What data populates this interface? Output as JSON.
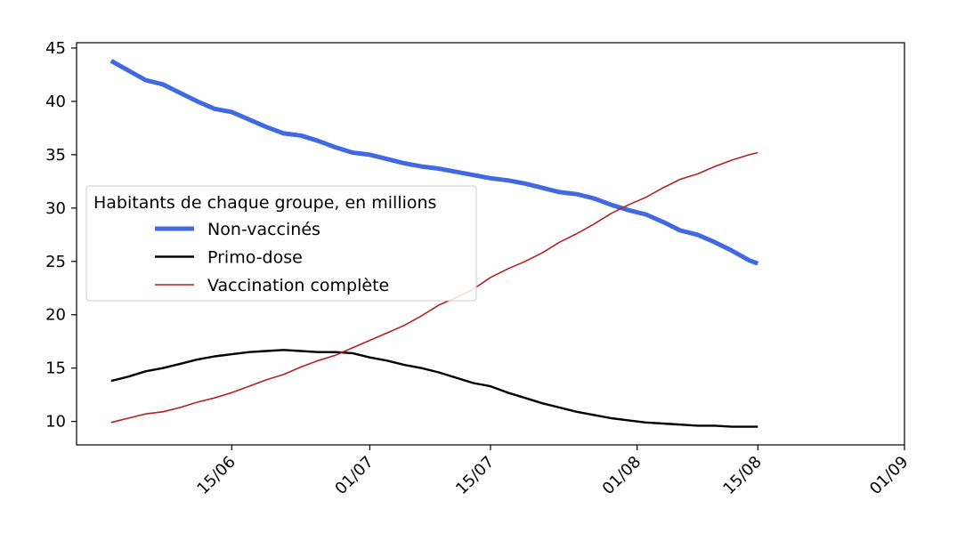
{
  "chart_data": {
    "type": "line",
    "title": "",
    "xlabel": "",
    "ylabel": "",
    "x_ticks": [
      "15/06",
      "01/07",
      "15/07",
      "01/08",
      "15/08",
      "01/09"
    ],
    "x_tick_dates": [
      "2021-06-15",
      "2021-07-01",
      "2021-07-15",
      "2021-08-01",
      "2021-08-15",
      "2021-09-01"
    ],
    "xlim": [
      "2021-05-28",
      "2021-09-01"
    ],
    "y_ticks": [
      10,
      15,
      20,
      25,
      30,
      35,
      40,
      45
    ],
    "ylim": [
      7.8,
      45.5
    ],
    "grid": false,
    "legend": {
      "title": "Habitants de chaque groupe, en millions",
      "placement": "center-left"
    },
    "series": [
      {
        "name": "Non-vaccinés",
        "color": "#4169e1",
        "line_width": "thick",
        "x": [
          "2021-06-01",
          "2021-06-03",
          "2021-06-05",
          "2021-06-07",
          "2021-06-09",
          "2021-06-11",
          "2021-06-13",
          "2021-06-15",
          "2021-06-17",
          "2021-06-19",
          "2021-06-21",
          "2021-06-23",
          "2021-06-25",
          "2021-06-27",
          "2021-06-29",
          "2021-07-01",
          "2021-07-03",
          "2021-07-05",
          "2021-07-07",
          "2021-07-09",
          "2021-07-11",
          "2021-07-13",
          "2021-07-15",
          "2021-07-17",
          "2021-07-19",
          "2021-07-21",
          "2021-07-23",
          "2021-07-25",
          "2021-07-27",
          "2021-07-29",
          "2021-07-31",
          "2021-08-02",
          "2021-08-04",
          "2021-08-06",
          "2021-08-08",
          "2021-08-10",
          "2021-08-12",
          "2021-08-14",
          "2021-08-15"
        ],
        "values": [
          43.8,
          42.9,
          42.0,
          41.6,
          40.8,
          40.0,
          39.3,
          39.0,
          38.3,
          37.6,
          37.0,
          36.8,
          36.3,
          35.7,
          35.2,
          35.0,
          34.6,
          34.2,
          33.9,
          33.7,
          33.4,
          33.1,
          32.8,
          32.6,
          32.3,
          31.9,
          31.5,
          31.3,
          30.9,
          30.3,
          29.8,
          29.4,
          28.7,
          27.9,
          27.5,
          26.8,
          26.0,
          25.1,
          24.8
        ]
      },
      {
        "name": "Primo-dose",
        "color": "#000000",
        "line_width": "medium",
        "x": [
          "2021-06-01",
          "2021-06-03",
          "2021-06-05",
          "2021-06-07",
          "2021-06-09",
          "2021-06-11",
          "2021-06-13",
          "2021-06-15",
          "2021-06-17",
          "2021-06-19",
          "2021-06-21",
          "2021-06-23",
          "2021-06-25",
          "2021-06-27",
          "2021-06-29",
          "2021-07-01",
          "2021-07-03",
          "2021-07-05",
          "2021-07-07",
          "2021-07-09",
          "2021-07-11",
          "2021-07-13",
          "2021-07-15",
          "2021-07-17",
          "2021-07-19",
          "2021-07-21",
          "2021-07-23",
          "2021-07-25",
          "2021-07-27",
          "2021-07-29",
          "2021-07-31",
          "2021-08-02",
          "2021-08-04",
          "2021-08-06",
          "2021-08-08",
          "2021-08-10",
          "2021-08-12",
          "2021-08-14",
          "2021-08-15"
        ],
        "values": [
          13.8,
          14.2,
          14.7,
          15.0,
          15.4,
          15.8,
          16.1,
          16.3,
          16.5,
          16.6,
          16.7,
          16.6,
          16.5,
          16.5,
          16.4,
          16.0,
          15.7,
          15.3,
          15.0,
          14.6,
          14.1,
          13.6,
          13.3,
          12.7,
          12.2,
          11.7,
          11.3,
          10.9,
          10.6,
          10.3,
          10.1,
          9.9,
          9.8,
          9.7,
          9.6,
          9.6,
          9.5,
          9.5,
          9.5
        ]
      },
      {
        "name": "Vaccination complète",
        "color": "#b22222",
        "line_width": "thin",
        "x": [
          "2021-06-01",
          "2021-06-03",
          "2021-06-05",
          "2021-06-07",
          "2021-06-09",
          "2021-06-11",
          "2021-06-13",
          "2021-06-15",
          "2021-06-17",
          "2021-06-19",
          "2021-06-21",
          "2021-06-23",
          "2021-06-25",
          "2021-06-27",
          "2021-06-29",
          "2021-07-01",
          "2021-07-03",
          "2021-07-05",
          "2021-07-07",
          "2021-07-09",
          "2021-07-11",
          "2021-07-13",
          "2021-07-15",
          "2021-07-17",
          "2021-07-19",
          "2021-07-21",
          "2021-07-23",
          "2021-07-25",
          "2021-07-27",
          "2021-07-29",
          "2021-07-31",
          "2021-08-02",
          "2021-08-04",
          "2021-08-06",
          "2021-08-08",
          "2021-08-10",
          "2021-08-12",
          "2021-08-14",
          "2021-08-15"
        ],
        "values": [
          9.9,
          10.3,
          10.7,
          10.9,
          11.3,
          11.8,
          12.2,
          12.7,
          13.3,
          13.9,
          14.4,
          15.1,
          15.7,
          16.2,
          16.9,
          17.6,
          18.3,
          19.0,
          19.9,
          20.9,
          21.6,
          22.4,
          23.5,
          24.3,
          25.0,
          25.8,
          26.8,
          27.6,
          28.5,
          29.5,
          30.3,
          31.0,
          31.9,
          32.7,
          33.2,
          33.9,
          34.5,
          35.0,
          35.2
        ]
      }
    ]
  }
}
